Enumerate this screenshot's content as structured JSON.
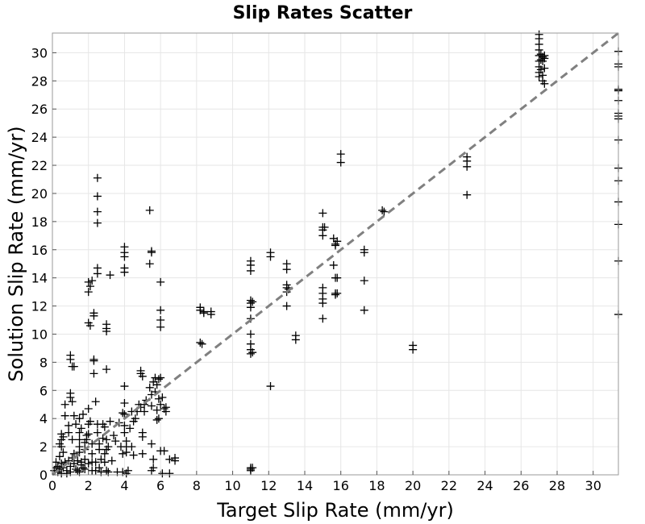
{
  "chart_data": {
    "type": "scatter",
    "title": "Slip Rates Scatter",
    "xlabel": "Target Slip Rate (mm/yr)",
    "ylabel": "Solution Slip Rate (mm/yr)",
    "xlim": [
      0,
      31.4
    ],
    "ylim": [
      0,
      31.4
    ],
    "xticks": [
      0,
      2,
      4,
      6,
      8,
      10,
      12,
      14,
      16,
      18,
      20,
      22,
      24,
      26,
      28,
      30
    ],
    "yticks": [
      0,
      2,
      4,
      6,
      8,
      10,
      12,
      14,
      16,
      18,
      20,
      22,
      24,
      26,
      28,
      30
    ],
    "grid": true,
    "reference_line": {
      "from": [
        0,
        0
      ],
      "to": [
        31.4,
        31.4
      ],
      "style": "dashed",
      "color": "#808080"
    },
    "marker": "plus",
    "marker_color": "#000000",
    "points": [
      [
        0.1,
        0.3
      ],
      [
        0.2,
        0.5
      ],
      [
        0.3,
        0.2
      ],
      [
        0.3,
        0.6
      ],
      [
        0.4,
        0.4
      ],
      [
        0.5,
        0.8
      ],
      [
        0.5,
        0.1
      ],
      [
        0.6,
        0.5
      ],
      [
        0.7,
        0.9
      ],
      [
        0.8,
        0.3
      ],
      [
        0.9,
        1.0
      ],
      [
        1.0,
        0.6
      ],
      [
        1.1,
        1.2
      ],
      [
        1.2,
        0.8
      ],
      [
        1.3,
        0.4
      ],
      [
        1.4,
        1.0
      ],
      [
        1.5,
        0.2
      ],
      [
        1.6,
        0.9
      ],
      [
        1.7,
        0.5
      ],
      [
        1.8,
        1.1
      ],
      [
        0.2,
        0.9
      ],
      [
        0.4,
        1.3
      ],
      [
        0.6,
        1.6
      ],
      [
        0.8,
        0.1
      ],
      [
        1.0,
        0.2
      ],
      [
        1.2,
        1.5
      ],
      [
        1.4,
        0.3
      ],
      [
        1.6,
        0.7
      ],
      [
        1.8,
        0.4
      ],
      [
        2.0,
        0.8
      ],
      [
        0.5,
        2.5
      ],
      [
        0.5,
        2.9
      ],
      [
        0.5,
        2.0
      ],
      [
        0.4,
        2.2
      ],
      [
        0.6,
        2.7
      ],
      [
        0.7,
        5.0
      ],
      [
        0.7,
        4.2
      ],
      [
        0.9,
        3.5
      ],
      [
        0.9,
        3.0
      ],
      [
        1.0,
        5.8
      ],
      [
        1.0,
        5.5
      ],
      [
        1.0,
        8.5
      ],
      [
        1.0,
        8.2
      ],
      [
        1.1,
        7.7
      ],
      [
        1.1,
        5.2
      ],
      [
        1.2,
        4.2
      ],
      [
        1.1,
        2.5
      ],
      [
        1.3,
        3.6
      ],
      [
        1.2,
        7.7
      ],
      [
        1.5,
        2.5
      ],
      [
        1.5,
        3.0
      ],
      [
        1.5,
        2.0
      ],
      [
        1.5,
        1.6
      ],
      [
        1.5,
        4.0
      ],
      [
        1.6,
        3.3
      ],
      [
        1.7,
        4.3
      ],
      [
        1.8,
        1.8
      ],
      [
        1.8,
        2.3
      ],
      [
        1.9,
        2.5
      ],
      [
        1.9,
        2.8
      ],
      [
        2.0,
        10.8
      ],
      [
        2.1,
        10.6
      ],
      [
        2.0,
        13.7
      ],
      [
        2.1,
        13.4
      ],
      [
        2.0,
        13.0
      ],
      [
        2.2,
        13.8
      ],
      [
        2.0,
        3.6
      ],
      [
        2.0,
        4.7
      ],
      [
        2.0,
        2.9
      ],
      [
        2.1,
        3.8
      ],
      [
        2.2,
        2.2
      ],
      [
        2.2,
        1.5
      ],
      [
        2.2,
        0.9
      ],
      [
        2.2,
        0.3
      ],
      [
        2.3,
        11.5
      ],
      [
        2.3,
        11.3
      ],
      [
        2.3,
        8.1
      ],
      [
        2.3,
        8.2
      ],
      [
        2.3,
        7.2
      ],
      [
        2.4,
        5.2
      ],
      [
        2.4,
        0.9
      ],
      [
        2.4,
        0.3
      ],
      [
        2.5,
        21.1
      ],
      [
        2.5,
        19.8
      ],
      [
        2.5,
        18.7
      ],
      [
        2.5,
        17.9
      ],
      [
        2.5,
        14.7
      ],
      [
        2.5,
        14.3
      ],
      [
        2.5,
        3.6
      ],
      [
        2.5,
        3.0
      ],
      [
        2.6,
        2.2
      ],
      [
        2.6,
        1.8
      ],
      [
        2.6,
        0.5
      ],
      [
        2.7,
        1.1
      ],
      [
        2.7,
        0.2
      ],
      [
        2.8,
        3.6
      ],
      [
        2.8,
        2.6
      ],
      [
        2.9,
        3.4
      ],
      [
        2.9,
        1.5
      ],
      [
        2.9,
        0.9
      ],
      [
        3.0,
        10.7
      ],
      [
        3.0,
        10.4
      ],
      [
        3.0,
        10.2
      ],
      [
        3.0,
        7.5
      ],
      [
        3.0,
        2.5
      ],
      [
        3.0,
        1.8
      ],
      [
        3.0,
        0.3
      ],
      [
        3.1,
        2.0
      ],
      [
        3.1,
        0.2
      ],
      [
        3.2,
        14.2
      ],
      [
        3.2,
        3.8
      ],
      [
        3.3,
        1.0
      ],
      [
        3.4,
        2.8
      ],
      [
        3.5,
        2.4
      ],
      [
        3.6,
        0.2
      ],
      [
        3.7,
        3.7
      ],
      [
        3.8,
        2.0
      ],
      [
        3.9,
        4.4
      ],
      [
        3.9,
        1.5
      ],
      [
        3.9,
        0.2
      ],
      [
        4.0,
        16.2
      ],
      [
        4.0,
        15.8
      ],
      [
        4.0,
        15.5
      ],
      [
        4.0,
        14.7
      ],
      [
        4.0,
        14.4
      ],
      [
        4.0,
        6.3
      ],
      [
        4.0,
        5.1
      ],
      [
        4.0,
        4.3
      ],
      [
        4.0,
        3.5
      ],
      [
        4.0,
        3.0
      ],
      [
        4.1,
        2.4
      ],
      [
        4.1,
        2.0
      ],
      [
        4.1,
        1.6
      ],
      [
        4.1,
        0.1
      ],
      [
        4.2,
        0.3
      ],
      [
        4.3,
        3.3
      ],
      [
        4.4,
        4.5
      ],
      [
        4.4,
        2.0
      ],
      [
        4.5,
        3.8
      ],
      [
        4.5,
        1.4
      ],
      [
        4.6,
        4.0
      ],
      [
        4.7,
        4.5
      ],
      [
        4.8,
        5.0
      ],
      [
        4.9,
        4.8
      ],
      [
        4.9,
        7.2
      ],
      [
        4.9,
        7.4
      ],
      [
        5.0,
        7.0
      ],
      [
        5.0,
        3.0
      ],
      [
        5.0,
        2.7
      ],
      [
        5.0,
        1.5
      ],
      [
        5.1,
        5.0
      ],
      [
        5.1,
        4.5
      ],
      [
        5.2,
        5.3
      ],
      [
        5.4,
        18.8
      ],
      [
        5.5,
        15.9
      ],
      [
        5.5,
        15.8
      ],
      [
        5.4,
        15.0
      ],
      [
        5.4,
        6.2
      ],
      [
        5.5,
        5.7
      ],
      [
        5.5,
        4.9
      ],
      [
        5.5,
        2.2
      ],
      [
        5.5,
        0.3
      ],
      [
        5.6,
        6.6
      ],
      [
        5.6,
        1.1
      ],
      [
        5.6,
        0.5
      ],
      [
        5.7,
        6.9
      ],
      [
        5.7,
        5.9
      ],
      [
        5.8,
        6.4
      ],
      [
        5.8,
        4.6
      ],
      [
        5.8,
        3.9
      ],
      [
        5.9,
        6.8
      ],
      [
        5.9,
        5.4
      ],
      [
        5.9,
        4.0
      ],
      [
        6.0,
        13.7
      ],
      [
        6.0,
        11.7
      ],
      [
        6.0,
        11.0
      ],
      [
        6.0,
        10.5
      ],
      [
        6.0,
        6.9
      ],
      [
        6.0,
        5.0
      ],
      [
        6.0,
        1.7
      ],
      [
        6.1,
        5.5
      ],
      [
        6.2,
        4.7
      ],
      [
        6.3,
        4.5
      ],
      [
        6.3,
        4.8
      ],
      [
        6.5,
        1.1
      ],
      [
        6.5,
        0.1
      ],
      [
        6.8,
        1.2
      ],
      [
        6.8,
        1.0
      ],
      [
        6.2,
        1.7
      ],
      [
        6.1,
        0.1
      ],
      [
        8.2,
        11.9
      ],
      [
        8.2,
        11.7
      ],
      [
        8.2,
        9.4
      ],
      [
        8.3,
        9.3
      ],
      [
        8.4,
        11.6
      ],
      [
        8.4,
        11.5
      ],
      [
        8.8,
        11.6
      ],
      [
        8.8,
        11.4
      ],
      [
        11.0,
        15.2
      ],
      [
        11.0,
        14.9
      ],
      [
        11.0,
        14.5
      ],
      [
        11.0,
        12.4
      ],
      [
        11.0,
        12.2
      ],
      [
        11.0,
        11.9
      ],
      [
        11.0,
        11.1
      ],
      [
        11.0,
        10.0
      ],
      [
        11.0,
        9.3
      ],
      [
        11.0,
        8.9
      ],
      [
        11.0,
        8.6
      ],
      [
        11.0,
        0.5
      ],
      [
        11.0,
        0.4
      ],
      [
        11.0,
        0.3
      ],
      [
        11.1,
        12.3
      ],
      [
        11.1,
        8.7
      ],
      [
        11.1,
        0.5
      ],
      [
        12.1,
        15.8
      ],
      [
        12.1,
        15.5
      ],
      [
        12.1,
        6.3
      ],
      [
        13.0,
        15.0
      ],
      [
        13.0,
        14.6
      ],
      [
        13.0,
        13.5
      ],
      [
        13.0,
        13.3
      ],
      [
        13.0,
        13.0
      ],
      [
        13.0,
        12.0
      ],
      [
        13.1,
        13.2
      ],
      [
        13.5,
        9.9
      ],
      [
        13.5,
        9.6
      ],
      [
        15.0,
        18.6
      ],
      [
        15.0,
        17.6
      ],
      [
        15.0,
        17.4
      ],
      [
        15.0,
        17.0
      ],
      [
        15.0,
        13.3
      ],
      [
        15.0,
        12.9
      ],
      [
        15.0,
        12.5
      ],
      [
        15.0,
        12.2
      ],
      [
        15.0,
        11.1
      ],
      [
        15.1,
        17.6
      ],
      [
        15.6,
        16.8
      ],
      [
        15.6,
        14.9
      ],
      [
        15.7,
        16.4
      ],
      [
        15.7,
        16.3
      ],
      [
        15.7,
        14.0
      ],
      [
        15.7,
        12.9
      ],
      [
        15.7,
        12.8
      ],
      [
        15.8,
        16.6
      ],
      [
        15.8,
        14.0
      ],
      [
        15.8,
        12.9
      ],
      [
        16.0,
        22.8
      ],
      [
        16.0,
        22.2
      ],
      [
        17.3,
        16.0
      ],
      [
        17.3,
        15.8
      ],
      [
        17.3,
        13.8
      ],
      [
        17.3,
        11.7
      ],
      [
        18.3,
        18.8
      ],
      [
        18.4,
        18.7
      ],
      [
        20.0,
        9.2
      ],
      [
        20.0,
        8.9
      ],
      [
        23.0,
        22.6
      ],
      [
        23.0,
        22.3
      ],
      [
        23.0,
        21.9
      ],
      [
        23.0,
        19.9
      ],
      [
        27.0,
        31.3
      ],
      [
        27.0,
        31.0
      ],
      [
        27.0,
        30.6
      ],
      [
        27.0,
        30.2
      ],
      [
        27.0,
        29.8
      ],
      [
        27.0,
        29.4
      ],
      [
        27.0,
        29.0
      ],
      [
        27.0,
        28.6
      ],
      [
        27.0,
        28.3
      ],
      [
        27.1,
        29.9
      ],
      [
        27.1,
        29.5
      ],
      [
        27.1,
        28.8
      ],
      [
        27.2,
        29.7
      ],
      [
        27.2,
        29.4
      ],
      [
        27.2,
        28.4
      ],
      [
        27.2,
        28.0
      ],
      [
        27.3,
        29.8
      ],
      [
        27.3,
        29.6
      ],
      [
        27.3,
        28.9
      ],
      [
        27.3,
        27.8
      ],
      [
        31.4,
        30.1
      ],
      [
        31.4,
        29.2
      ],
      [
        31.4,
        29.0
      ],
      [
        31.4,
        27.4
      ],
      [
        31.4,
        27.3
      ],
      [
        31.4,
        26.6
      ],
      [
        31.4,
        25.7
      ],
      [
        31.4,
        25.5
      ],
      [
        31.4,
        25.3
      ],
      [
        31.4,
        23.8
      ],
      [
        31.4,
        21.8
      ],
      [
        31.4,
        20.9
      ],
      [
        31.4,
        19.4
      ],
      [
        31.4,
        17.8
      ],
      [
        31.4,
        15.2
      ],
      [
        31.4,
        11.4
      ]
    ]
  }
}
